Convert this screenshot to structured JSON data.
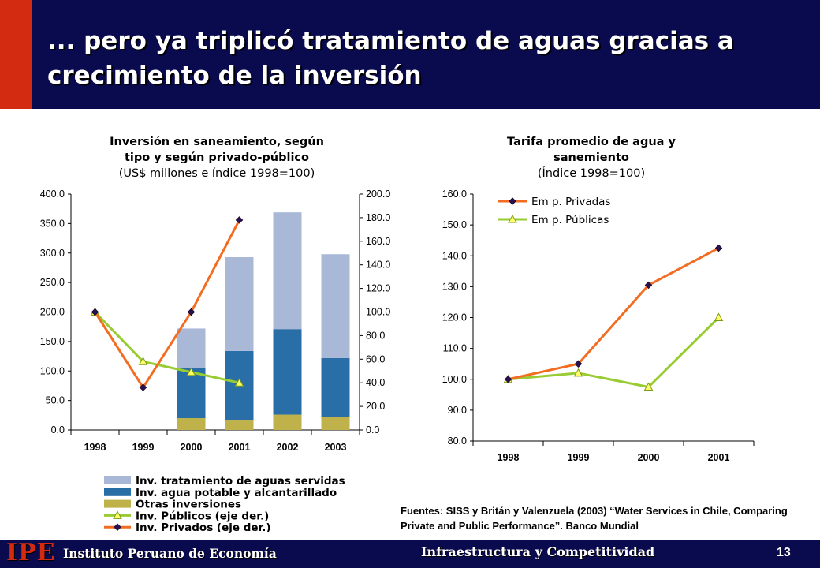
{
  "header": {
    "title": "... pero ya triplicó tratamiento de aguas gracias a crecimiento de la inversión",
    "bg_color": "#0a0a4e",
    "accent_color": "#d32a12"
  },
  "chart_data": [
    {
      "type": "bar",
      "title_line1": "Inversión en saneamiento, según",
      "title_line2": "tipo y según privado-público",
      "subtitle": "(US$ millones e índice 1998=100)",
      "categories": [
        "1998",
        "1999",
        "2000",
        "2001",
        "2002",
        "2003"
      ],
      "stacked": true,
      "ylim": [
        0,
        400
      ],
      "y_ticks": [
        "0.0",
        "50.0",
        "100.0",
        "150.0",
        "200.0",
        "250.0",
        "300.0",
        "350.0",
        "400.0"
      ],
      "y2lim": [
        0,
        200
      ],
      "y2_ticks": [
        "0.0",
        "20.0",
        "40.0",
        "60.0",
        "80.0",
        "100.0",
        "120.0",
        "140.0",
        "160.0",
        "180.0",
        "200.0"
      ],
      "series": [
        {
          "name": "Otras inversiones",
          "kind": "bar",
          "color": "#bfb24a",
          "values": [
            null,
            null,
            20,
            16,
            26,
            22
          ]
        },
        {
          "name": "Inv. agua potable y alcantarillado",
          "kind": "bar",
          "color": "#2a6ea8",
          "values": [
            null,
            null,
            86,
            118,
            145,
            100
          ]
        },
        {
          "name": "Inv. tratamiento de aguas servidas",
          "kind": "bar",
          "color": "#aab8d8",
          "values": [
            null,
            null,
            66,
            159,
            198,
            176
          ]
        },
        {
          "name": "Inv. Públicos (eje der.)",
          "kind": "line",
          "axis": "right",
          "color": "#99cc33",
          "marker": "triangle",
          "values": [
            100,
            58,
            49,
            40,
            null,
            null
          ]
        },
        {
          "name": "Inv. Privados (eje der.)",
          "kind": "line",
          "axis": "right",
          "color": "#f26d21",
          "marker": "diamond",
          "values": [
            100,
            36,
            100,
            178,
            null,
            null
          ]
        }
      ],
      "legend_placement": "bottom",
      "grid": false
    },
    {
      "type": "line",
      "title_line1": "Tarifa promedio de agua y",
      "title_line2": "sanemiento",
      "subtitle": "(Índice 1998=100)",
      "categories": [
        "1998",
        "1999",
        "2000",
        "2001"
      ],
      "ylim": [
        80,
        160
      ],
      "y_ticks": [
        "80.0",
        "90.0",
        "100.0",
        "110.0",
        "120.0",
        "130.0",
        "140.0",
        "150.0",
        "160.0"
      ],
      "series": [
        {
          "name": "Em p. Privadas",
          "color": "#f26d21",
          "marker": "diamond",
          "values": [
            100,
            105,
            130.5,
            142.5
          ]
        },
        {
          "name": "Em p. Públicas",
          "color": "#99cc33",
          "marker": "triangle",
          "values": [
            100,
            102,
            97.5,
            120
          ]
        }
      ],
      "legend_placement": "top-left",
      "grid": false
    }
  ],
  "sources": "Fuentes: SISS y Britán­ y Valenzuela (2003) “Water Services in Chile, Comparing Private and Public Performance”. Banco Mundial",
  "footer": {
    "logo": "IPE",
    "institution": "Instituto Peruano de Economía",
    "section": "Infraestructura y Competitividad",
    "page": "13"
  }
}
